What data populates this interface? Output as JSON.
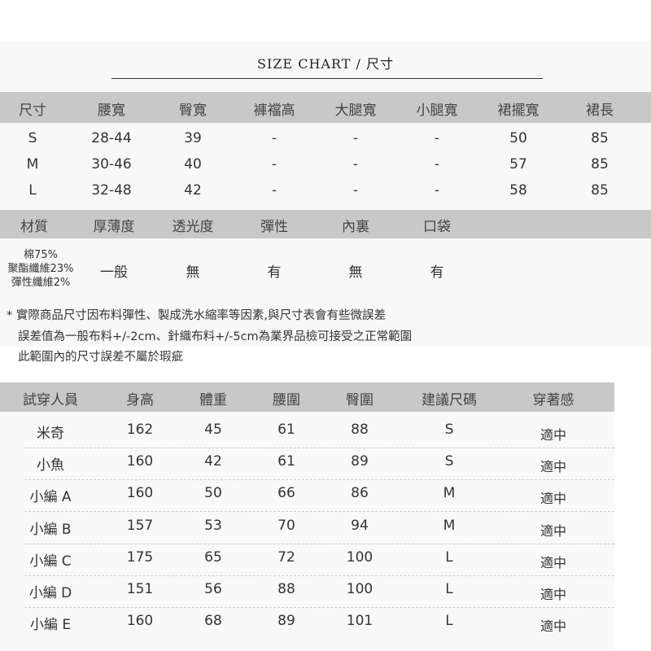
{
  "title": "SIZE CHART / 尺寸",
  "size_table": {
    "headers": [
      "尺寸",
      "腰寬",
      "臀寬",
      "褲襠高",
      "大腿寬",
      "小腿寬",
      "裙擺寬",
      "裙長"
    ],
    "rows": [
      [
        "S",
        "28-44",
        "39",
        "-",
        "-",
        "-",
        "50",
        "85"
      ],
      [
        "M",
        "30-46",
        "40",
        "-",
        "-",
        "-",
        "57",
        "85"
      ],
      [
        "L",
        "32-48",
        "42",
        "-",
        "-",
        "-",
        "58",
        "85"
      ]
    ]
  },
  "material_table": {
    "headers": [
      "材質",
      "厚薄度",
      "透光度",
      "彈性",
      "內裏",
      "口袋"
    ],
    "material": [
      "棉75%",
      "聚酯纖維23%",
      "彈性纖維2%"
    ],
    "values": [
      "一般",
      "無",
      "有",
      "無",
      "有"
    ]
  },
  "notes": [
    "* 實際商品尺寸因布料彈性、製成洗水縮率等因素,與尺寸表會有些微誤差",
    "誤差值為一般布料+/-2cm、針織布料+/-5cm為業界品檢可接受之正常範圍",
    "此範圍內的尺寸誤差不屬於瑕疵"
  ],
  "fitting_table": {
    "headers": [
      "試穿人員",
      "身高",
      "體重",
      "腰圍",
      "臀圍",
      "建議尺碼",
      "穿著感"
    ],
    "rows": [
      [
        "米奇",
        "162",
        "45",
        "61",
        "88",
        "S",
        "適中"
      ],
      [
        "小魚",
        "160",
        "42",
        "61",
        "89",
        "S",
        "適中"
      ],
      [
        "小編 A",
        "160",
        "50",
        "66",
        "86",
        "M",
        "適中"
      ],
      [
        "小編 B",
        "157",
        "53",
        "70",
        "94",
        "M",
        "適中"
      ],
      [
        "小編 C",
        "175",
        "65",
        "72",
        "100",
        "L",
        "適中"
      ],
      [
        "小編 D",
        "151",
        "56",
        "88",
        "100",
        "L",
        "適中"
      ],
      [
        "小編 E",
        "160",
        "68",
        "89",
        "101",
        "L",
        "適中"
      ]
    ]
  },
  "colors": {
    "header_bar": "#c8c8c8",
    "panel": "#f8f8f8"
  }
}
